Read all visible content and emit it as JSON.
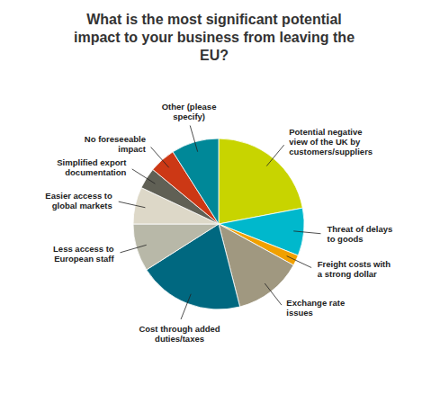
{
  "chart_data": {
    "type": "pie",
    "title": "What is the most significant potential\nimpact to your business from leaving the\nEU?",
    "categories": [
      "Potential negative\nview of the UK by\ncustomers/suppliers",
      "Threat of delays\nto goods",
      "Freight costs with\na strong dollar",
      "Exchange rate\nissues",
      "Cost through added\nduties/taxes",
      "Less access to\nEuropean staff",
      "Easier access to\nglobal markets",
      "Simplified export\ndocumentation",
      "No foreseeable\nimpact",
      "Other (please\nspecify)"
    ],
    "values": [
      22,
      9,
      2,
      13,
      20,
      9,
      7,
      4,
      5,
      9
    ],
    "colors": [
      "#c8d400",
      "#00b8cc",
      "#f0a000",
      "#a09880",
      "#006880",
      "#b8b8a8",
      "#ddd8c8",
      "#606055",
      "#cc3815",
      "#008898"
    ]
  }
}
